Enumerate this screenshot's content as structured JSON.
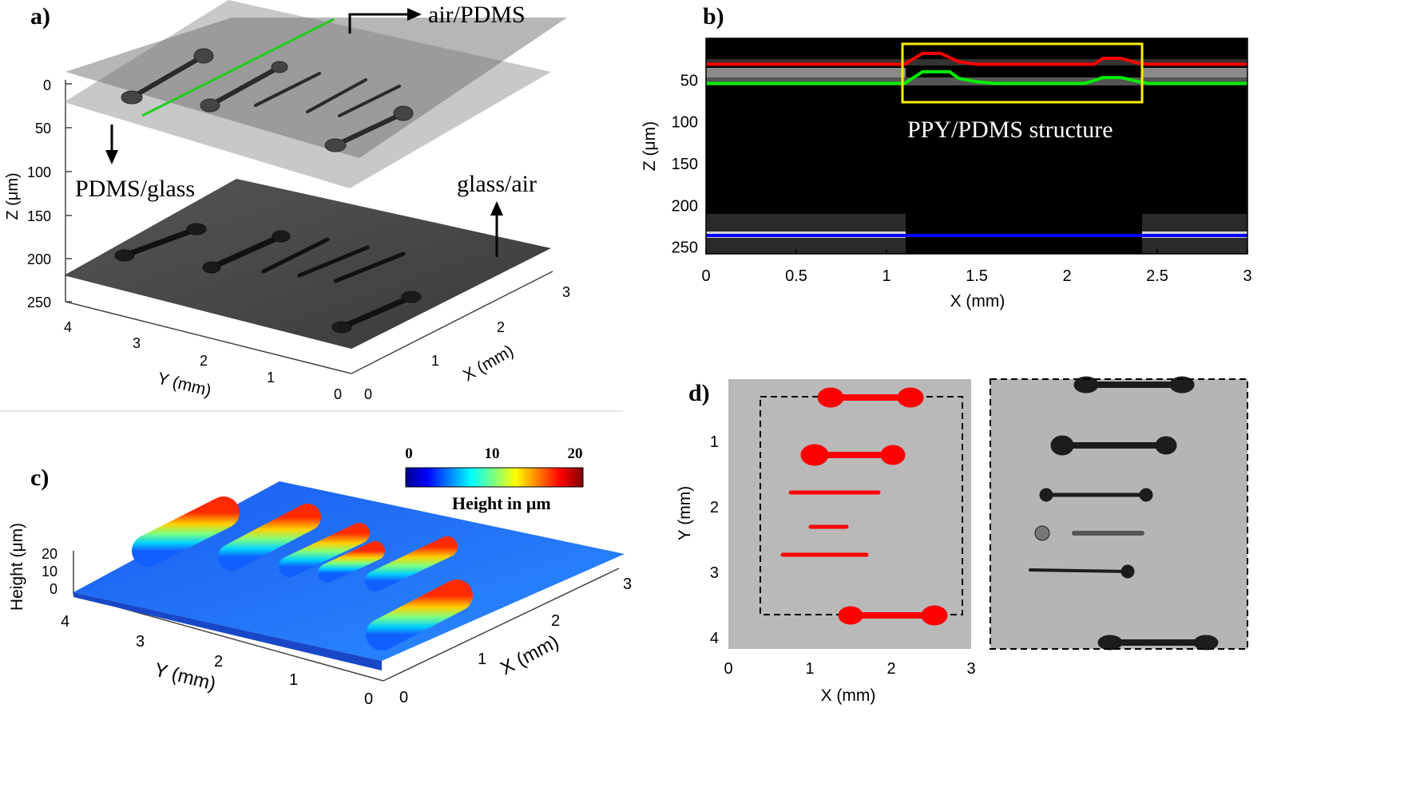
{
  "chart_data": [
    {
      "panel": "a)",
      "type": "surface3d",
      "zlabel": "Z (μm)",
      "ylabel": "Y (mm)",
      "xlabel": "X (mm)",
      "z_ticks": [
        "0",
        "50",
        "100",
        "150",
        "200",
        "250"
      ],
      "y_ticks": [
        "4",
        "3",
        "2",
        "1",
        "0"
      ],
      "x_ticks": [
        "0",
        "1",
        "2",
        "3"
      ],
      "annotations": [
        "air/PDMS",
        "PDMS/glass",
        "glass/air"
      ]
    },
    {
      "panel": "b)",
      "type": "image",
      "xlabel": "X (mm)",
      "ylabel": "Z (μm)",
      "xlim": [
        0,
        3
      ],
      "ylim": [
        250,
        0
      ],
      "x_ticks": [
        "0",
        "0.5",
        "1",
        "1.5",
        "2",
        "2.5",
        "3"
      ],
      "y_ticks": [
        "50",
        "100",
        "150",
        "200",
        "250"
      ],
      "annotation": "PPY/PDMS structure",
      "series": [
        {
          "name": "air/PDMS interface",
          "color": "#ff0000",
          "x": [
            0,
            1.1,
            1.2,
            1.3,
            1.4,
            1.5,
            1.6,
            2.0,
            2.15,
            2.2,
            2.3,
            2.4,
            2.45,
            3.0
          ],
          "z": [
            31,
            31,
            18,
            18,
            28,
            31,
            31,
            31,
            31,
            24,
            24,
            30,
            31,
            31
          ]
        },
        {
          "name": "PDMS/glass interface",
          "color": "#00ee00",
          "x": [
            0,
            1.1,
            1.2,
            1.35,
            1.4,
            1.5,
            1.6,
            2.1,
            2.2,
            2.3,
            2.4,
            2.45,
            3.0
          ],
          "z": [
            54,
            54,
            40,
            40,
            48,
            52,
            54,
            54,
            47,
            47,
            52,
            54,
            54
          ]
        },
        {
          "name": "glass/air interface",
          "color": "#0000ff",
          "x": [
            0,
            3.0
          ],
          "z": [
            236,
            236
          ]
        }
      ]
    },
    {
      "panel": "c)",
      "type": "surface3d",
      "zlabel": "Height (μm)",
      "ylabel": "Y (mm)",
      "xlabel": "X (mm)",
      "z_ticks": [
        "20",
        "10",
        "0"
      ],
      "y_ticks": [
        "4",
        "3",
        "2",
        "1",
        "0"
      ],
      "x_ticks": [
        "0",
        "1",
        "2",
        "3"
      ],
      "colorbar": {
        "title": "Height in μm",
        "ticks": [
          "0",
          "10",
          "20"
        ],
        "range": [
          0,
          20
        ]
      }
    },
    {
      "panel": "d)",
      "type": "image",
      "xlabel": "X (mm)",
      "ylabel": "Y (mm)",
      "x_ticks": [
        "0",
        "1",
        "2",
        "3"
      ],
      "y_ticks": [
        "1",
        "2",
        "3",
        "4"
      ]
    }
  ],
  "colors": {
    "red": "#ff0000",
    "green": "#00dd00",
    "blue": "#0000ff",
    "yellow": "#ffee00"
  }
}
